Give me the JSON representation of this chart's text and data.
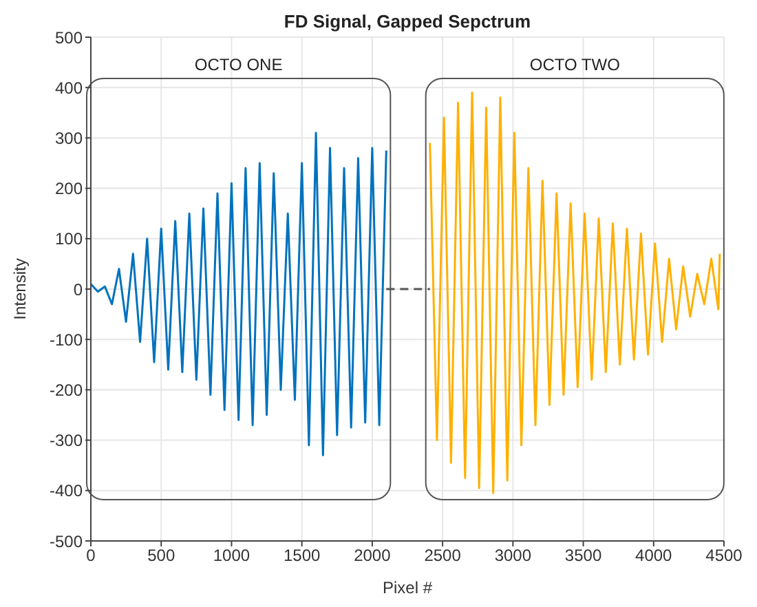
{
  "chart_data": {
    "type": "line",
    "title": "FD Signal, Gapped Sepctrum",
    "xlabel": "Pixel #",
    "ylabel": "Intensity",
    "annotations": [
      "OCTO ONE",
      "OCTO TWO"
    ],
    "series": [
      {
        "color": "#0072bd",
        "x": [
          0,
          50,
          100,
          150,
          200,
          250,
          300,
          350,
          400,
          450,
          500,
          550,
          600,
          650,
          700,
          750,
          800,
          850,
          900,
          950,
          1000,
          1050,
          1100,
          1150,
          1200,
          1250,
          1300,
          1350,
          1400,
          1450,
          1500,
          1550,
          1600,
          1650,
          1700,
          1750,
          1800,
          1850,
          1900,
          1950,
          2000,
          2050,
          2100
        ],
        "values": [
          10,
          -5,
          5,
          -30,
          40,
          -65,
          70,
          -105,
          100,
          -145,
          120,
          -160,
          135,
          -165,
          150,
          -180,
          160,
          -210,
          190,
          -240,
          210,
          -260,
          240,
          -270,
          250,
          -250,
          230,
          -200,
          150,
          -220,
          250,
          -310,
          310,
          -330,
          280,
          -290,
          240,
          -275,
          260,
          -265,
          280,
          -270,
          275
        ]
      },
      {
        "color": "#ffb000",
        "x": [
          2410,
          2460,
          2510,
          2560,
          2610,
          2660,
          2710,
          2760,
          2810,
          2860,
          2910,
          2960,
          3010,
          3060,
          3110,
          3160,
          3210,
          3260,
          3310,
          3360,
          3410,
          3460,
          3510,
          3560,
          3610,
          3660,
          3710,
          3760,
          3810,
          3860,
          3910,
          3960,
          4010,
          4060,
          4110,
          4160,
          4210,
          4260,
          4310,
          4360,
          4410,
          4460,
          4470
        ],
        "values": [
          290,
          -300,
          340,
          -345,
          370,
          -375,
          390,
          -395,
          360,
          -405,
          380,
          -380,
          310,
          -310,
          240,
          -270,
          215,
          -230,
          190,
          -210,
          170,
          -195,
          150,
          -180,
          140,
          -165,
          130,
          -150,
          120,
          -140,
          110,
          -130,
          90,
          -105,
          60,
          -80,
          45,
          -55,
          30,
          -30,
          60,
          -40,
          70
        ]
      },
      {
        "color": "#555555",
        "line_style": "dashed",
        "x": [
          2100,
          2410
        ],
        "values": [
          0,
          0
        ]
      }
    ],
    "xlim": [
      0,
      4500
    ],
    "xticks": [
      0,
      500,
      1000,
      1500,
      2000,
      2500,
      3000,
      3500,
      4000,
      4500
    ],
    "ylim": [
      -500,
      500
    ],
    "yticks": [
      -500,
      -400,
      -300,
      -200,
      -100,
      0,
      100,
      200,
      300,
      400,
      500
    ],
    "grid": true,
    "marker": "none",
    "line_style": "solid"
  }
}
